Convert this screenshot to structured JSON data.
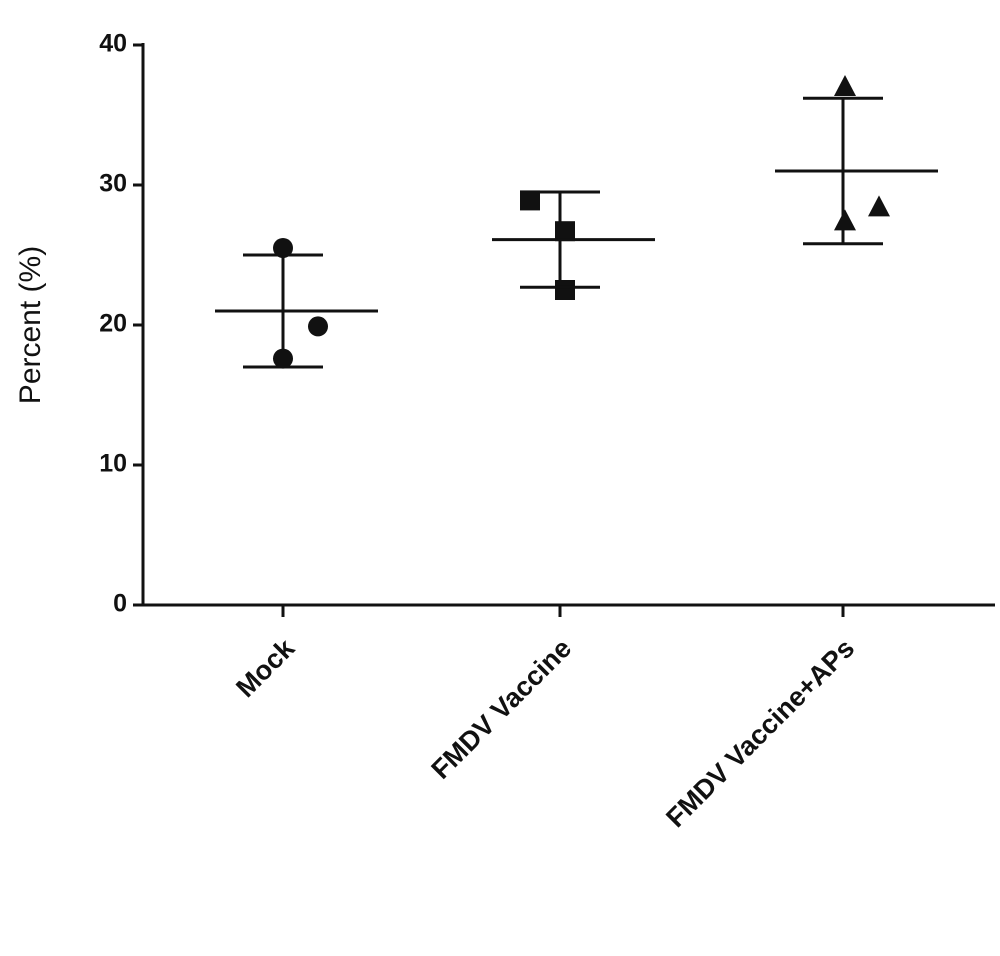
{
  "chart_data": {
    "type": "scatter-dot",
    "y_label": "Percent (%)",
    "categories": [
      "Mock",
      "FMDV Vaccine",
      "FMDV Vaccine+APs"
    ],
    "groups": [
      {
        "marker": "circle",
        "values": [
          25.5,
          17.6,
          19.9
        ],
        "mean": 21.0,
        "sd": 4.0
      },
      {
        "marker": "square",
        "values": [
          28.9,
          26.7,
          22.5
        ],
        "mean": 26.1,
        "sd": 3.4
      },
      {
        "marker": "triangle",
        "values": [
          37.0,
          27.4,
          28.4
        ],
        "mean": 31.0,
        "sd": 5.2
      }
    ],
    "color": "#111111",
    "ylim": [
      0,
      40
    ],
    "yticks": [
      0,
      10,
      20,
      30,
      40
    ]
  }
}
